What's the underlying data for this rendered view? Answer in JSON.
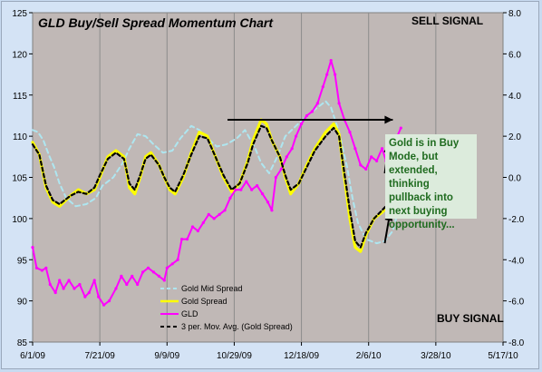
{
  "chart_data": {
    "type": "line",
    "title": "GLD Buy/Sell Spread Momentum Chart",
    "signals": {
      "top": "SELL SIGNAL",
      "bottom": "BUY SIGNAL"
    },
    "annotation": "Gold is in Buy Mode, but extended, thinking pullback into next buying opportunity...",
    "x_ticks": [
      "6/1/09",
      "7/21/09",
      "9/9/09",
      "10/29/09",
      "12/18/09",
      "2/6/10",
      "3/28/10",
      "5/17/10"
    ],
    "left_axis": {
      "min": 85,
      "max": 125,
      "ticks": [
        "85",
        "90",
        "95",
        "100",
        "105",
        "110",
        "115",
        "120",
        "125"
      ]
    },
    "right_axis": {
      "min": -8,
      "max": 8,
      "ticks": [
        "-8.0",
        "-6.0",
        "-4.0",
        "-2.0",
        "0.0",
        "2.0",
        "4.0",
        "6.0",
        "8.0"
      ]
    },
    "x_index_range": [
      0,
      350
    ],
    "series": [
      {
        "name": "Gold Mid Spread",
        "axis": "right",
        "color": "#aee6f0",
        "style": "dashed",
        "points": [
          [
            0,
            2.3
          ],
          [
            4,
            2.2
          ],
          [
            8,
            1.8
          ],
          [
            12,
            1.1
          ],
          [
            16,
            0.5
          ],
          [
            20,
            -0.3
          ],
          [
            25,
            -1.0
          ],
          [
            32,
            -1.4
          ],
          [
            40,
            -1.3
          ],
          [
            47,
            -1.0
          ],
          [
            52,
            -0.4
          ],
          [
            60,
            0.0
          ],
          [
            67,
            0.7
          ],
          [
            72,
            1.4
          ],
          [
            78,
            2.1
          ],
          [
            84,
            2.0
          ],
          [
            90,
            1.6
          ],
          [
            97,
            1.2
          ],
          [
            104,
            1.3
          ],
          [
            110,
            1.9
          ],
          [
            114,
            2.2
          ],
          [
            118,
            2.5
          ],
          [
            124,
            2.3
          ],
          [
            130,
            1.9
          ],
          [
            137,
            1.5
          ],
          [
            144,
            1.6
          ],
          [
            152,
            1.9
          ],
          [
            158,
            2.3
          ],
          [
            165,
            1.5
          ],
          [
            170,
            0.7
          ],
          [
            176,
            0.2
          ],
          [
            182,
            1.0
          ],
          [
            188,
            2.0
          ],
          [
            196,
            2.5
          ],
          [
            204,
            3.0
          ],
          [
            212,
            3.4
          ],
          [
            218,
            3.7
          ],
          [
            222,
            3.4
          ],
          [
            228,
            2.2
          ],
          [
            234,
            0.5
          ],
          [
            238,
            -1.0
          ],
          [
            242,
            -2.2
          ],
          [
            248,
            -3.0
          ],
          [
            256,
            -3.2
          ],
          [
            262,
            -3.1
          ],
          [
            268,
            -2.6
          ],
          [
            272,
            -1.6
          ]
        ]
      },
      {
        "name": "Gold  Spread",
        "axis": "right",
        "color": "#ffff00",
        "style": "solid",
        "points": [
          [
            0,
            1.7
          ],
          [
            5,
            1.1
          ],
          [
            10,
            -0.5
          ],
          [
            15,
            -1.2
          ],
          [
            20,
            -1.4
          ],
          [
            28,
            -0.9
          ],
          [
            34,
            -0.6
          ],
          [
            40,
            -0.8
          ],
          [
            46,
            -0.6
          ],
          [
            50,
            0.0
          ],
          [
            56,
            1.0
          ],
          [
            62,
            1.3
          ],
          [
            68,
            1.0
          ],
          [
            72,
            -0.5
          ],
          [
            76,
            -0.8
          ],
          [
            80,
            0.0
          ],
          [
            84,
            1.0
          ],
          [
            88,
            1.2
          ],
          [
            94,
            0.6
          ],
          [
            98,
            0.0
          ],
          [
            102,
            -0.6
          ],
          [
            106,
            -0.8
          ],
          [
            112,
            0.0
          ],
          [
            118,
            1.2
          ],
          [
            124,
            2.2
          ],
          [
            130,
            2.0
          ],
          [
            136,
            1.0
          ],
          [
            142,
            0.0
          ],
          [
            148,
            -0.7
          ],
          [
            154,
            -0.3
          ],
          [
            160,
            0.8
          ],
          [
            164,
            1.8
          ],
          [
            170,
            2.8
          ],
          [
            174,
            2.6
          ],
          [
            178,
            1.8
          ],
          [
            184,
            1.0
          ],
          [
            188,
            0.0
          ],
          [
            192,
            -0.8
          ],
          [
            198,
            -0.3
          ],
          [
            204,
            0.6
          ],
          [
            210,
            1.4
          ],
          [
            218,
            2.2
          ],
          [
            224,
            2.6
          ],
          [
            228,
            2.1
          ],
          [
            232,
            0.0
          ],
          [
            236,
            -2.0
          ],
          [
            240,
            -3.4
          ],
          [
            244,
            -3.6
          ],
          [
            248,
            -2.8
          ],
          [
            254,
            -2.0
          ],
          [
            260,
            -1.7
          ],
          [
            266,
            -1.3
          ],
          [
            270,
            0.0
          ],
          [
            274,
            1.2
          ],
          [
            278,
            2.0
          ]
        ]
      },
      {
        "name": "GLD",
        "axis": "left",
        "color": "#ff00ff",
        "style": "solid",
        "points": [
          [
            0,
            96.5
          ],
          [
            3,
            94
          ],
          [
            7,
            93.7
          ],
          [
            10,
            94
          ],
          [
            13,
            92
          ],
          [
            17,
            91
          ],
          [
            20,
            92.5
          ],
          [
            23,
            91.5
          ],
          [
            27,
            92.5
          ],
          [
            31,
            91.5
          ],
          [
            35,
            92
          ],
          [
            39,
            90.5
          ],
          [
            42,
            91
          ],
          [
            46,
            92.5
          ],
          [
            49,
            90.5
          ],
          [
            53,
            89.5
          ],
          [
            57,
            90
          ],
          [
            62,
            91.5
          ],
          [
            66,
            93
          ],
          [
            70,
            92
          ],
          [
            74,
            93
          ],
          [
            78,
            92
          ],
          [
            82,
            93.5
          ],
          [
            86,
            94
          ],
          [
            90,
            93.5
          ],
          [
            94,
            93
          ],
          [
            98,
            92.5
          ],
          [
            100,
            94
          ],
          [
            104,
            94.5
          ],
          [
            108,
            95
          ],
          [
            111,
            97.5
          ],
          [
            115,
            97.5
          ],
          [
            119,
            99
          ],
          [
            123,
            98.5
          ],
          [
            127,
            99.5
          ],
          [
            131,
            100.5
          ],
          [
            135,
            100
          ],
          [
            139,
            100.5
          ],
          [
            143,
            101
          ],
          [
            147,
            102.5
          ],
          [
            151,
            103.5
          ],
          [
            155,
            103.5
          ],
          [
            159,
            104.5
          ],
          [
            163,
            103.5
          ],
          [
            167,
            104
          ],
          [
            171,
            103
          ],
          [
            175,
            102
          ],
          [
            178,
            101
          ],
          [
            181,
            105
          ],
          [
            185,
            106
          ],
          [
            189,
            107.5
          ],
          [
            193,
            108.5
          ],
          [
            196,
            110
          ],
          [
            200,
            111.5
          ],
          [
            204,
            112.5
          ],
          [
            208,
            113
          ],
          [
            212,
            114
          ],
          [
            216,
            116
          ],
          [
            219,
            117.5
          ],
          [
            222,
            119.2
          ],
          [
            225,
            117.5
          ],
          [
            228,
            114
          ],
          [
            232,
            112
          ],
          [
            236,
            110.5
          ],
          [
            240,
            108.5
          ],
          [
            244,
            106.5
          ],
          [
            248,
            106
          ],
          [
            252,
            107.5
          ],
          [
            256,
            107
          ],
          [
            260,
            108.5
          ],
          [
            263,
            107
          ],
          [
            266,
            108.5
          ],
          [
            270,
            109.5
          ],
          [
            274,
            111
          ]
        ]
      },
      {
        "name": "3 per. Mov. Avg. (Gold  Spread)",
        "axis": "right",
        "color": "#000000",
        "style": "dashed",
        "points": [
          [
            0,
            1.6
          ],
          [
            5,
            1.1
          ],
          [
            10,
            -0.4
          ],
          [
            15,
            -1.1
          ],
          [
            20,
            -1.3
          ],
          [
            28,
            -0.9
          ],
          [
            34,
            -0.7
          ],
          [
            40,
            -0.8
          ],
          [
            46,
            -0.5
          ],
          [
            50,
            0.1
          ],
          [
            56,
            0.9
          ],
          [
            62,
            1.2
          ],
          [
            68,
            0.9
          ],
          [
            72,
            -0.3
          ],
          [
            76,
            -0.6
          ],
          [
            80,
            0.1
          ],
          [
            84,
            0.9
          ],
          [
            88,
            1.1
          ],
          [
            94,
            0.6
          ],
          [
            98,
            0.0
          ],
          [
            102,
            -0.5
          ],
          [
            106,
            -0.7
          ],
          [
            112,
            0.1
          ],
          [
            118,
            1.1
          ],
          [
            124,
            2.0
          ],
          [
            130,
            1.9
          ],
          [
            136,
            1.0
          ],
          [
            142,
            0.1
          ],
          [
            148,
            -0.6
          ],
          [
            154,
            -0.3
          ],
          [
            160,
            0.7
          ],
          [
            164,
            1.6
          ],
          [
            170,
            2.5
          ],
          [
            174,
            2.4
          ],
          [
            178,
            1.8
          ],
          [
            184,
            1.0
          ],
          [
            188,
            0.1
          ],
          [
            192,
            -0.6
          ],
          [
            198,
            -0.3
          ],
          [
            204,
            0.5
          ],
          [
            210,
            1.3
          ],
          [
            218,
            2.0
          ],
          [
            224,
            2.4
          ],
          [
            228,
            2.0
          ],
          [
            232,
            0.2
          ],
          [
            236,
            -1.6
          ],
          [
            240,
            -3.1
          ],
          [
            244,
            -3.4
          ],
          [
            248,
            -2.7
          ],
          [
            254,
            -2.0
          ],
          [
            260,
            -1.6
          ],
          [
            266,
            -1.2
          ],
          [
            270,
            0.0
          ],
          [
            274,
            1.0
          ],
          [
            278,
            1.8
          ]
        ]
      }
    ],
    "arrows": [
      {
        "from": [
          145,
          112
        ],
        "to": [
          268,
          112
        ],
        "axis": "left"
      },
      {
        "from": [
          262,
          0.2
        ],
        "to": [
          265,
          1.6
        ],
        "axis": "right"
      },
      {
        "from": [
          262,
          -3.2
        ],
        "to": [
          266,
          -1.7
        ],
        "axis": "right"
      }
    ]
  }
}
